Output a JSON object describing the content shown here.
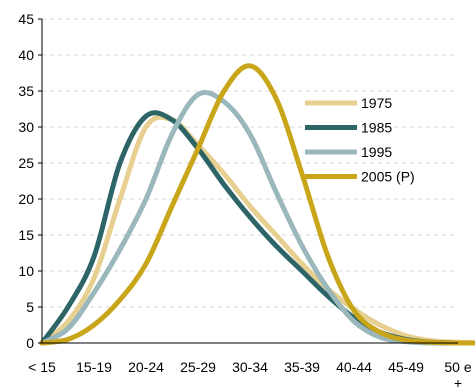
{
  "chart_data": {
    "type": "line",
    "categories": [
      "< 15",
      "15-19",
      "20-24",
      "25-29",
      "30-34",
      "35-39",
      "40-44",
      "45-49",
      "50 e +"
    ],
    "ylim": [
      0,
      45
    ],
    "yticks": [
      0,
      5,
      10,
      15,
      20,
      25,
      30,
      35,
      40,
      45
    ],
    "grid": "horizontal dashed",
    "legend_position": "right",
    "series": [
      {
        "name": "1975",
        "color": "#e6cf8f",
        "x": [
          0,
          0.5,
          1,
          1.5,
          2,
          2.5,
          3,
          3.5,
          4,
          4.5,
          5,
          5.5,
          6,
          6.5,
          7,
          7.5,
          8,
          8.5,
          9
        ],
        "values": [
          0,
          3,
          9,
          20,
          30,
          31,
          27.5,
          23.5,
          19,
          15,
          11,
          7.5,
          4.7,
          2.5,
          1,
          0.3,
          0.1,
          0,
          0
        ]
      },
      {
        "name": "1985",
        "color": "#2d6466",
        "x": [
          0,
          0.5,
          1,
          1.5,
          2,
          2.5,
          3,
          3.5,
          4,
          4.5,
          5,
          5.5,
          6,
          6.5,
          7,
          7.5,
          8,
          8.5,
          9
        ],
        "values": [
          0,
          5,
          12,
          25,
          31.5,
          31,
          27,
          22,
          17.5,
          13.5,
          10,
          6.5,
          3.5,
          1.5,
          0.5,
          0.1,
          0,
          0,
          0
        ]
      },
      {
        "name": "1995",
        "color": "#9ab8bb",
        "x": [
          0,
          0.5,
          1,
          1.5,
          2,
          2.5,
          3,
          3.5,
          4,
          4.5,
          5,
          5.5,
          6,
          6.5,
          7,
          7.5,
          8,
          8.5,
          9
        ],
        "values": [
          0,
          2,
          7,
          13,
          20,
          29,
          34.5,
          33.5,
          29,
          21,
          13.5,
          7.5,
          3,
          0.8,
          0.2,
          0,
          0,
          0,
          0
        ]
      },
      {
        "name": "2005 (P)",
        "color": "#c8a519",
        "x": [
          0,
          0.5,
          1,
          1.5,
          2,
          2.5,
          3,
          3.5,
          4,
          4.5,
          5,
          5.5,
          6,
          6.5,
          7,
          7.5,
          8,
          8.5,
          9
        ],
        "values": [
          0,
          0.5,
          2.5,
          6,
          11,
          19,
          27,
          35,
          38.5,
          34,
          23.5,
          12,
          4.5,
          1.5,
          0.4,
          0.1,
          0,
          0,
          0
        ]
      }
    ]
  }
}
